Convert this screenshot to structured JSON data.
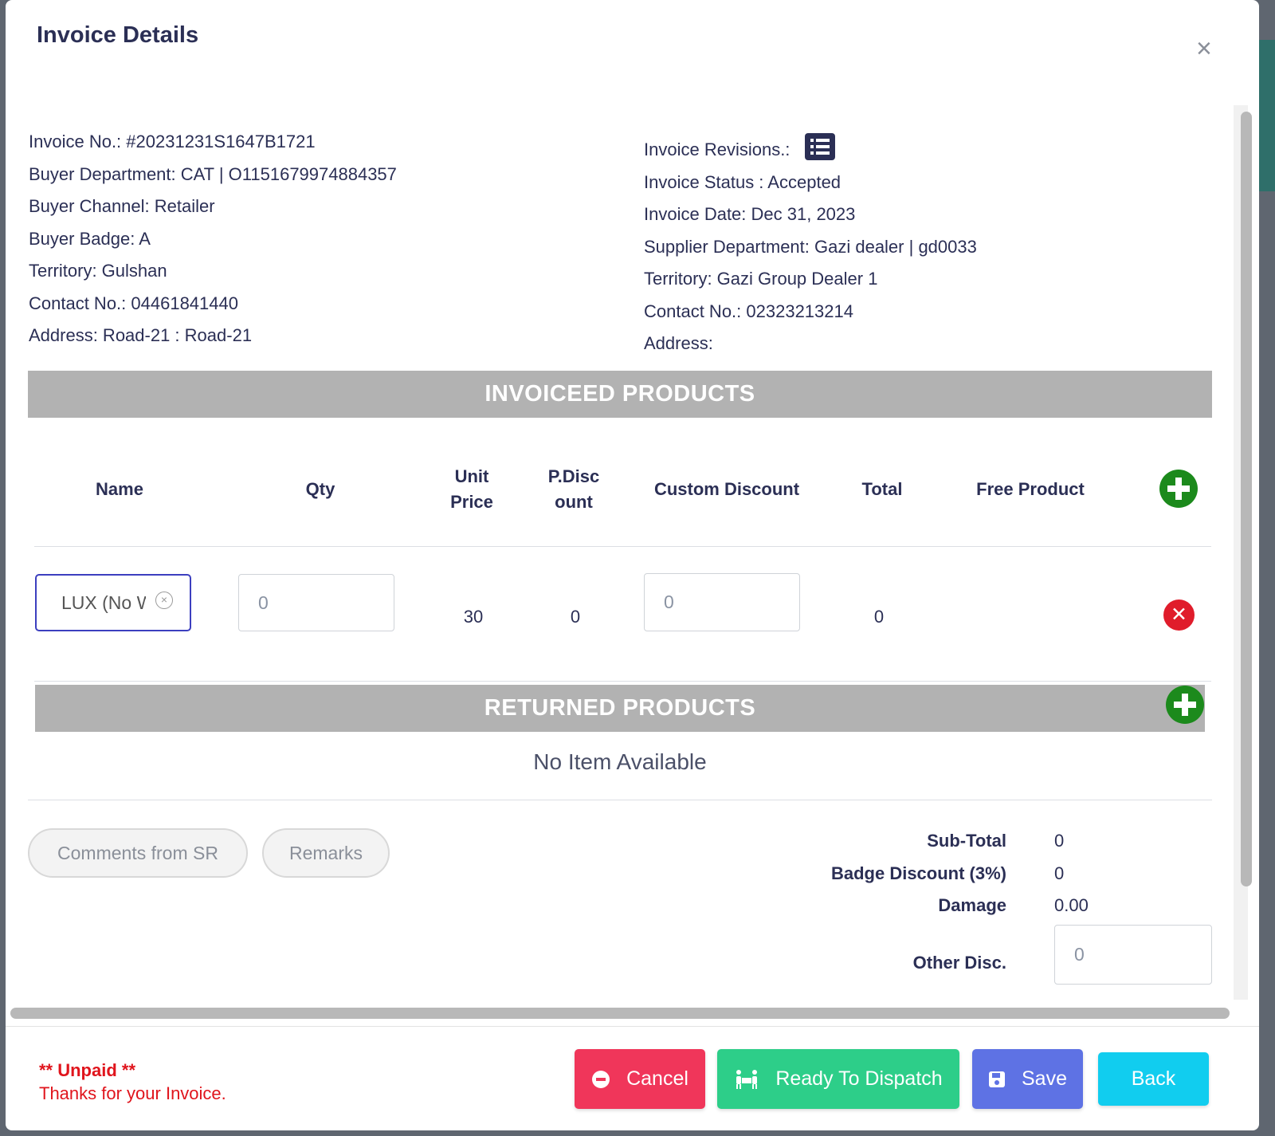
{
  "modal": {
    "title": "Invoice Details",
    "close_glyph": "×"
  },
  "buyer": {
    "invoice_no": "Invoice No.: #20231231S1647B1721",
    "department": "Buyer Department: CAT | O1151679974884357",
    "channel": "Buyer Channel: Retailer",
    "badge": "Buyer Badge: A",
    "territory": "Territory: Gulshan",
    "contact": "Contact No.: 04461841440",
    "address": "Address: Road-21 : Road-21"
  },
  "supplier": {
    "revisions_label": "Invoice Revisions.:",
    "revisions_icon": "list-icon",
    "status": "Invoice Status : Accepted",
    "date": "Invoice Date: Dec 31, 2023",
    "department": "Supplier Department: Gazi dealer | gd0033",
    "territory": "Territory: Gazi Group Dealer 1",
    "contact": "Contact No.: 02323213214",
    "address": "Address:"
  },
  "invoiced": {
    "heading": "INVOICEED PRODUCTS",
    "columns": {
      "name": "Name",
      "qty": "Qty",
      "unit_price_1": "Unit",
      "unit_price_2": "Price",
      "pdisc_1": "P.Disc",
      "pdisc_2": "ount",
      "custom_discount": "Custom Discount",
      "total": "Total",
      "free_product": "Free Product"
    },
    "rows": [
      {
        "name": "LUX (No Weight)",
        "qty": "0",
        "unit_price": "30",
        "pdiscount": "0",
        "custom_discount": "0",
        "total": "0",
        "free_product": ""
      }
    ]
  },
  "returned": {
    "heading": "RETURNED PRODUCTS",
    "empty_text": "No Item Available"
  },
  "notes": {
    "comments_label": "Comments from SR",
    "remarks_label": "Remarks"
  },
  "summary": {
    "subtotal_label": "Sub-Total",
    "subtotal": "0",
    "badge_discount_label": "Badge Discount (3%)",
    "badge_discount": "0",
    "damage_label": "Damage",
    "damage": "0.00",
    "other_disc_label": "Other Disc.",
    "other_disc_placeholder": "0"
  },
  "footer": {
    "unpaid": "** Unpaid **",
    "thanks": "Thanks for your Invoice.",
    "cancel": "Cancel",
    "dispatch": "Ready To Dispatch",
    "save": "Save",
    "back": "Back"
  },
  "colors": {
    "title": "#2b2f55",
    "band": "#b2b2b2",
    "green": "#1c8a1c",
    "red": "#e01c2b",
    "cancel": "#f0365a",
    "dispatch": "#2dce89",
    "save": "#5e72e4",
    "back": "#11cdef",
    "unpaid": "#e0141c"
  }
}
